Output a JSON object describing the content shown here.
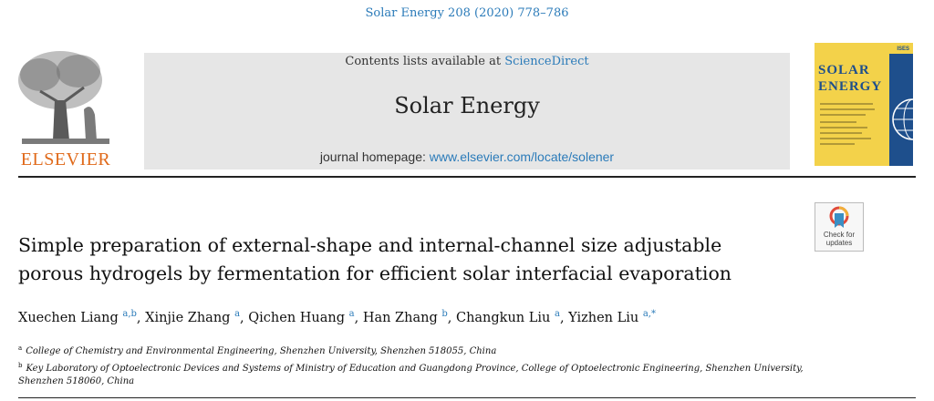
{
  "header": {
    "citation": "Solar Energy 208 (2020) 778–786",
    "contents_prefix": "Contents lists available at ",
    "contents_link": "ScienceDirect",
    "journal_name": "Solar Energy",
    "homepage_prefix": "journal homepage: ",
    "homepage_url": "www.elsevier.com/locate/solener"
  },
  "publisher": {
    "name": "ELSEVIER"
  },
  "cover": {
    "title_line1": "SOLAR",
    "title_line2": "ENERGY",
    "brand": "ISES"
  },
  "badge": {
    "line1": "Check for",
    "line2": "updates"
  },
  "article": {
    "title_line1": "Simple preparation of external-shape and internal-channel size adjustable",
    "title_line2": "porous hydrogels by fermentation for efficient solar interfacial evaporation"
  },
  "authors": [
    {
      "name": "Xuechen Liang",
      "sup": "a,b",
      "sep": ", "
    },
    {
      "name": "Xinjie Zhang",
      "sup": "a",
      "sep": ", "
    },
    {
      "name": "Qichen Huang",
      "sup": "a",
      "sep": ", "
    },
    {
      "name": "Han Zhang",
      "sup": "b",
      "sep": ", "
    },
    {
      "name": "Changkun Liu",
      "sup": "a",
      "sep": ", "
    },
    {
      "name": "Yizhen Liu",
      "sup": "a,*",
      "sep": ""
    }
  ],
  "affiliations": [
    {
      "mark": "a",
      "text": "College of Chemistry and Environmental Engineering, Shenzhen University, Shenzhen 518055, China"
    },
    {
      "mark": "b",
      "text": "Key Laboratory of Optoelectronic Devices and Systems of Ministry of Education and Guangdong Province, College of Optoelectronic Engineering, Shenzhen University,"
    },
    {
      "mark": "",
      "text": "Shenzhen 518060, China"
    }
  ],
  "colors": {
    "link": "#2b7bb9",
    "elsevier_orange": "#e06a1b",
    "banner_bg": "#e6e6e6",
    "cover_bg": "#f3d24a",
    "cover_blue": "#1e4f8c"
  },
  "icons": {
    "publisher_logo": "elsevier-tree-icon",
    "badge_icon": "crossmark-icon"
  }
}
